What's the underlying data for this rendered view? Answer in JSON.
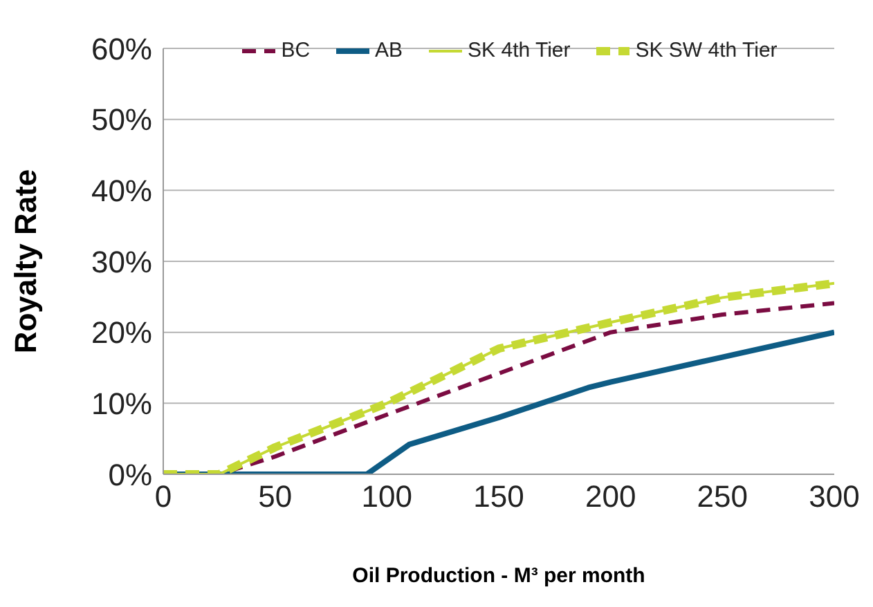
{
  "chart_data": {
    "type": "line",
    "xlabel": "Oil Production - M³ per month",
    "ylabel": "Royalty Rate",
    "xlim": [
      0,
      300
    ],
    "xticks": [
      0,
      50,
      100,
      150,
      200,
      250,
      300
    ],
    "ylim": [
      0,
      0.6
    ],
    "yticks": [
      {
        "value": 0,
        "label": "0%"
      },
      {
        "value": 0.1,
        "label": "10%"
      },
      {
        "value": 0.2,
        "label": "20%"
      },
      {
        "value": 0.3,
        "label": "30%"
      },
      {
        "value": 0.4,
        "label": "40%"
      },
      {
        "value": 0.5,
        "label": "50%"
      },
      {
        "value": 0.6,
        "label": "60%"
      }
    ],
    "grid": "y",
    "legend": "top",
    "marker": "none",
    "series": [
      {
        "name": "BC",
        "color": "#7b0c42",
        "line_style": "dashed",
        "x": [
          0,
          25,
          50,
          100,
          150,
          200,
          250,
          300
        ],
        "values": [
          0,
          0,
          0.025,
          0.084,
          0.142,
          0.2,
          0.225,
          0.241
        ]
      },
      {
        "name": "AB",
        "color": "#0e5c85",
        "line_style": "solid",
        "x": [
          0,
          25,
          50,
          91,
          110,
          150,
          190,
          200,
          250,
          300
        ],
        "values": [
          0,
          0,
          0,
          0,
          0.042,
          0.08,
          0.122,
          0.13,
          0.165,
          0.2
        ]
      },
      {
        "name": "SK 4th Tier",
        "color": "#c5d934",
        "line_style": "solid",
        "x": [
          0,
          25,
          50,
          100,
          150,
          200,
          250,
          300
        ],
        "values": [
          0,
          0,
          0.038,
          0.1,
          0.177,
          0.214,
          0.249,
          0.269
        ]
      },
      {
        "name": "SK SW 4th Tier",
        "color": "#c5d934",
        "line_style": "dashed",
        "x": [
          0,
          25,
          50,
          100,
          150,
          200,
          250,
          300
        ],
        "values": [
          0,
          0,
          0.038,
          0.1,
          0.177,
          0.214,
          0.249,
          0.269
        ]
      }
    ]
  }
}
